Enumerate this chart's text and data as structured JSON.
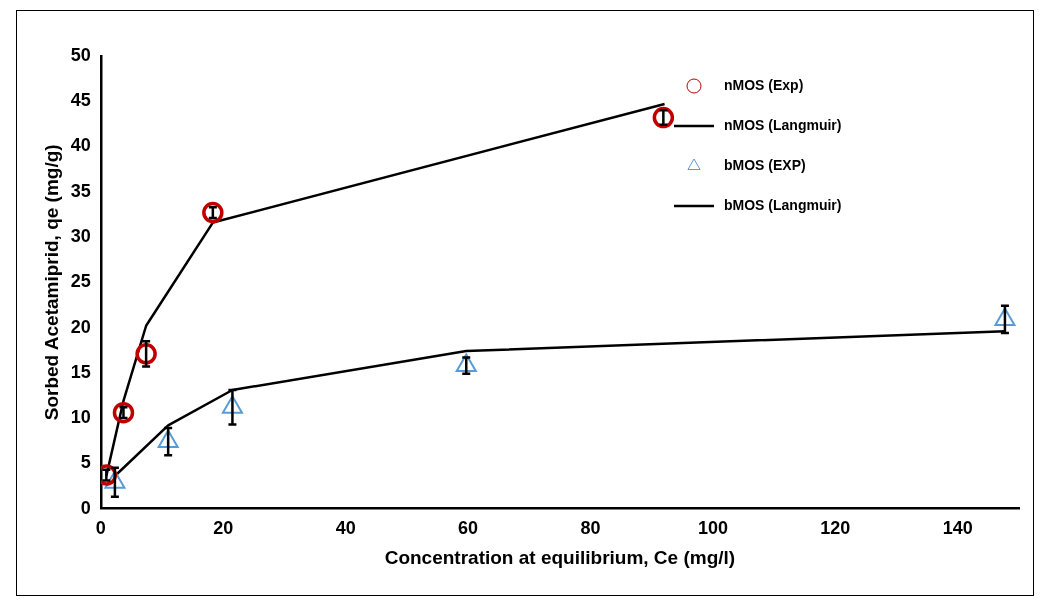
{
  "chart_data": {
    "type": "scatter",
    "xlabel": "Concentration at equilibrium, Ce (mg/l)",
    "ylabel": "Sorbed Acetamiprid, qe (mg/g)",
    "xlim": [
      0,
      150
    ],
    "xticks": [
      0,
      20,
      40,
      60,
      80,
      100,
      120,
      140
    ],
    "ylim": [
      0,
      50
    ],
    "yticks": [
      0,
      5,
      10,
      15,
      20,
      25,
      30,
      35,
      40,
      45,
      50
    ],
    "grid": false,
    "legend": "top right",
    "series": [
      {
        "name": "nMOS (Exp)",
        "marker": "circle",
        "color": "#c00000",
        "x": [
          0.9,
          3.7,
          7.4,
          18.3,
          91.9
        ],
        "values": [
          3.7,
          10.6,
          17.1,
          32.7,
          43.2
        ],
        "errors": [
          0.6,
          0.6,
          1.4,
          0.6,
          0.8
        ]
      },
      {
        "name": "nMOS (Langmuir)",
        "type": "line",
        "marker": "none",
        "color": "#000000",
        "x": [
          0.9,
          3.7,
          7.4,
          18.3,
          92.1
        ],
        "values": [
          3.6,
          11.9,
          20.2,
          31.6,
          44.7
        ]
      },
      {
        "name": "bMOS (EXP)",
        "marker": "triangle",
        "color": "#5b9bd5",
        "x": [
          2.3,
          11,
          21.5,
          59.7,
          147.7
        ],
        "values": [
          2.9,
          7.4,
          11.2,
          15.8,
          20.9
        ],
        "errors": [
          1.6,
          1.5,
          1.9,
          0.9,
          1.5
        ]
      },
      {
        "name": "bMOS (Langmuir)",
        "type": "line",
        "marker": "none",
        "color": "#000000",
        "x": [
          2.3,
          11,
          21.5,
          59.7,
          147.7
        ],
        "values": [
          3.6,
          9.2,
          13.1,
          17.4,
          19.6
        ]
      }
    ]
  }
}
